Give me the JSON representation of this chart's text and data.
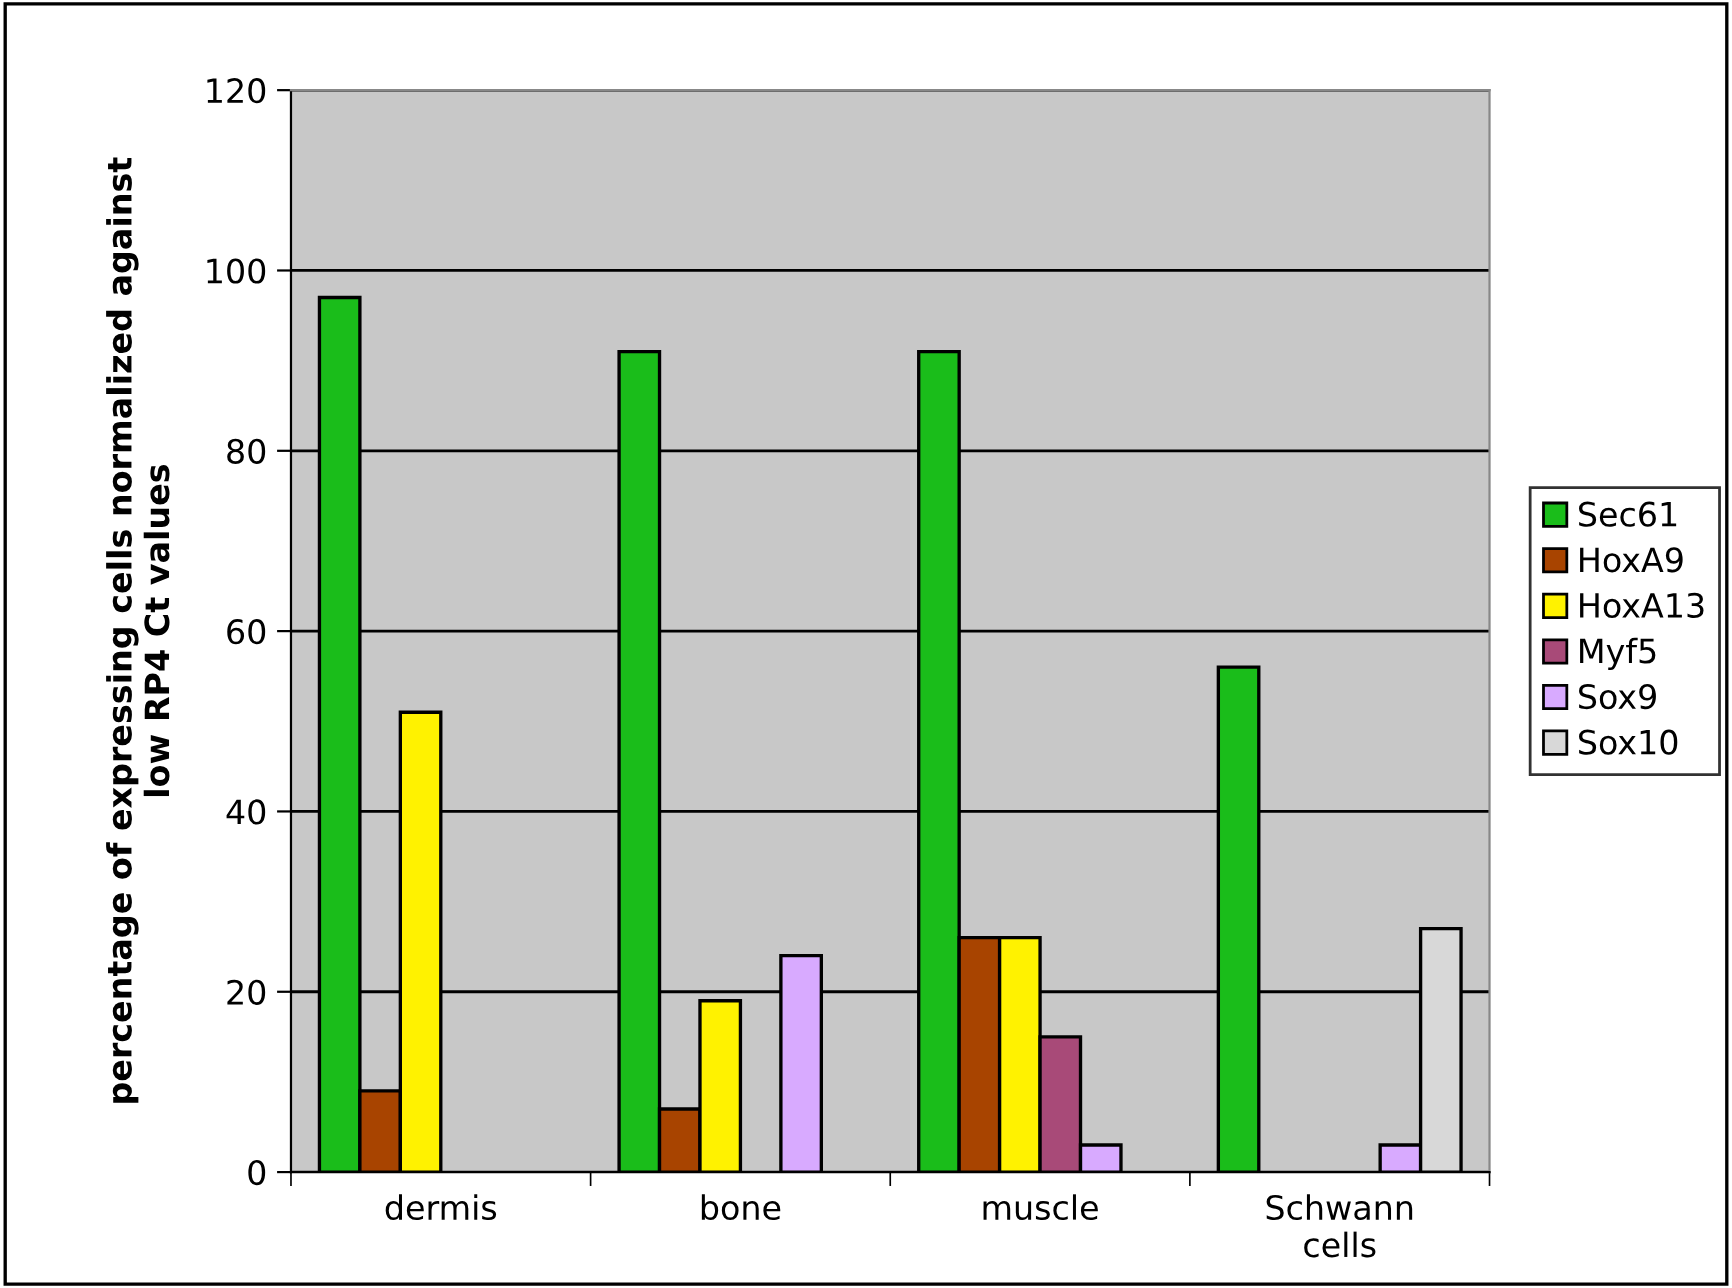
{
  "chart_data": {
    "type": "bar",
    "ylabel": "percentage of expressing cells normalized against\nlow RP4 Ct values",
    "categories": [
      "dermis",
      "bone",
      "muscle",
      "Schwann\ncells"
    ],
    "series": [
      {
        "name": "Sec61",
        "color": "#1abd1a",
        "values": [
          97,
          91,
          91,
          56
        ]
      },
      {
        "name": "HoxA9",
        "color": "#a84400",
        "values": [
          9,
          7,
          26,
          null
        ]
      },
      {
        "name": "HoxA13",
        "color": "#fff200",
        "values": [
          51,
          19,
          26,
          null
        ]
      },
      {
        "name": "Myf5",
        "color": "#a84a78",
        "values": [
          null,
          null,
          15,
          null
        ]
      },
      {
        "name": "Sox9",
        "color": "#d8aaff",
        "values": [
          null,
          24,
          3,
          3
        ]
      },
      {
        "name": "Sox10",
        "color": "#d8d8d8",
        "values": [
          null,
          null,
          null,
          27
        ]
      }
    ],
    "ylim": [
      0,
      120
    ],
    "yticks": [
      0,
      20,
      40,
      60,
      80,
      100,
      120
    ],
    "grid": "y",
    "legend": "right"
  }
}
